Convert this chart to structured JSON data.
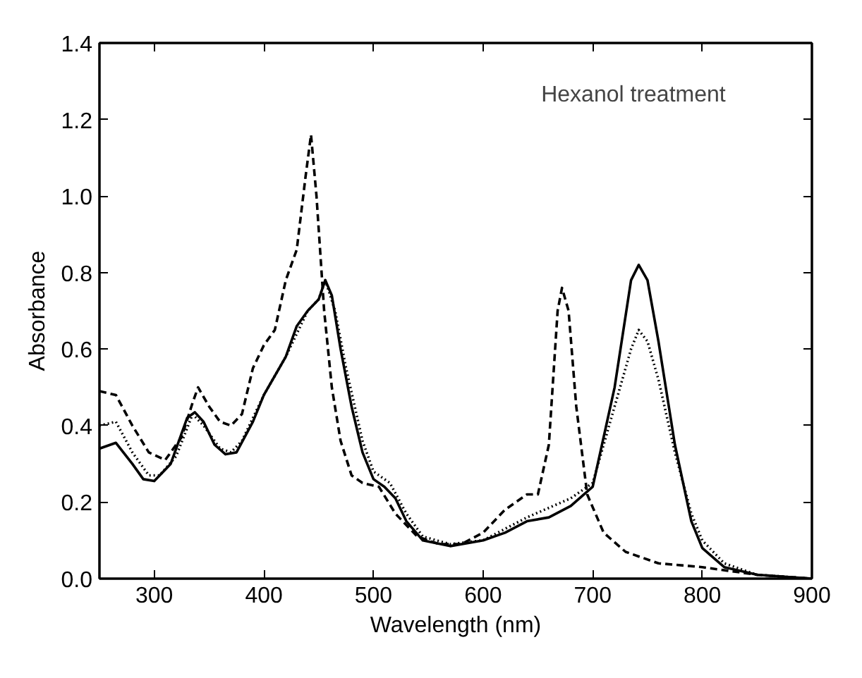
{
  "chart_data": {
    "type": "line",
    "xlabel": "Wavelength (nm)",
    "ylabel": "Absorbance",
    "annotations": [
      "Hexanol treatment"
    ],
    "xlim": [
      250,
      900
    ],
    "ylim": [
      0,
      1.4
    ],
    "xticks": [
      300,
      400,
      500,
      600,
      700,
      800,
      900
    ],
    "yticks": [
      {
        "value": 0,
        "label": "0.0"
      },
      0.2,
      0.4,
      0.6,
      0.8,
      {
        "value": 1,
        "label": "1.0"
      },
      1.2,
      1.4
    ],
    "grid": false,
    "series": [
      {
        "color": "#000000",
        "line_style": "solid",
        "x": [
          250,
          265,
          280,
          290,
          300,
          315,
          330,
          337,
          345,
          355,
          365,
          375,
          390,
          400,
          420,
          430,
          440,
          450,
          456,
          462,
          470,
          480,
          490,
          500,
          510,
          520,
          530,
          545,
          570,
          600,
          620,
          640,
          660,
          680,
          700,
          720,
          735,
          742,
          750,
          760,
          775,
          790,
          800,
          820,
          850,
          900
        ],
        "values": [
          0.34,
          0.355,
          0.3,
          0.26,
          0.255,
          0.3,
          0.42,
          0.435,
          0.41,
          0.35,
          0.325,
          0.33,
          0.41,
          0.48,
          0.58,
          0.66,
          0.7,
          0.73,
          0.78,
          0.74,
          0.6,
          0.45,
          0.33,
          0.26,
          0.24,
          0.21,
          0.15,
          0.1,
          0.085,
          0.1,
          0.12,
          0.15,
          0.16,
          0.19,
          0.24,
          0.5,
          0.78,
          0.82,
          0.78,
          0.62,
          0.35,
          0.15,
          0.08,
          0.03,
          0.01,
          0.0
        ]
      },
      {
        "color": "#000000",
        "line_style": "dashed",
        "x": [
          250,
          265,
          280,
          295,
          310,
          325,
          335,
          340,
          350,
          360,
          370,
          380,
          390,
          400,
          410,
          420,
          430,
          438,
          443,
          448,
          455,
          462,
          470,
          480,
          490,
          505,
          520,
          540,
          560,
          580,
          600,
          620,
          640,
          650,
          660,
          668,
          672,
          678,
          685,
          695,
          710,
          730,
          760,
          800,
          850,
          900
        ],
        "values": [
          0.49,
          0.48,
          0.4,
          0.33,
          0.31,
          0.37,
          0.46,
          0.5,
          0.45,
          0.41,
          0.4,
          0.43,
          0.55,
          0.61,
          0.65,
          0.78,
          0.86,
          1.05,
          1.16,
          1.0,
          0.7,
          0.5,
          0.36,
          0.27,
          0.25,
          0.24,
          0.17,
          0.11,
          0.09,
          0.09,
          0.12,
          0.18,
          0.22,
          0.22,
          0.35,
          0.7,
          0.76,
          0.7,
          0.45,
          0.22,
          0.12,
          0.07,
          0.04,
          0.03,
          0.01,
          0.0
        ]
      },
      {
        "color": "#000000",
        "line_style": "dotted",
        "x": [
          250,
          265,
          280,
          295,
          305,
          320,
          335,
          345,
          360,
          370,
          380,
          400,
          420,
          440,
          450,
          456,
          465,
          475,
          490,
          500,
          515,
          530,
          545,
          570,
          600,
          640,
          680,
          700,
          720,
          735,
          742,
          750,
          760,
          775,
          790,
          800,
          820,
          850,
          900
        ],
        "values": [
          0.4,
          0.41,
          0.33,
          0.27,
          0.27,
          0.32,
          0.43,
          0.4,
          0.34,
          0.33,
          0.36,
          0.48,
          0.58,
          0.7,
          0.73,
          0.78,
          0.7,
          0.55,
          0.36,
          0.28,
          0.25,
          0.17,
          0.11,
          0.09,
          0.1,
          0.16,
          0.21,
          0.25,
          0.45,
          0.6,
          0.65,
          0.62,
          0.52,
          0.33,
          0.17,
          0.1,
          0.04,
          0.01,
          0.0
        ]
      }
    ]
  }
}
